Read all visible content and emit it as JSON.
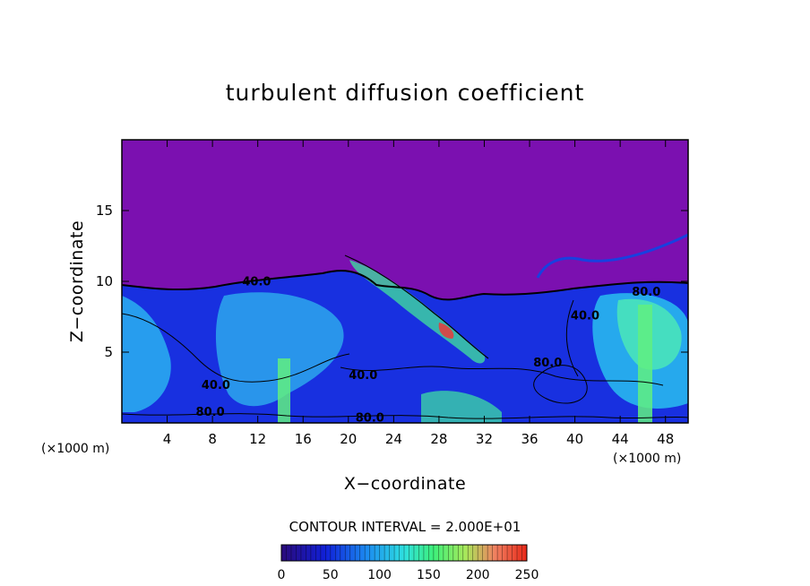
{
  "chart_data": {
    "type": "heatmap",
    "title": "turbulent diffusion coefficient",
    "xlabel": "X−coordinate",
    "ylabel": "Z−coordinate",
    "x_unit": "(×1000 m)",
    "y_unit": "(×1000 m)",
    "xlim": [
      0,
      50
    ],
    "ylim": [
      0,
      20
    ],
    "x_ticks": [
      4,
      8,
      12,
      16,
      20,
      24,
      28,
      32,
      36,
      40,
      44,
      48
    ],
    "y_ticks": [
      5,
      10,
      15
    ],
    "contour_interval_text": "CONTOUR INTERVAL = 2.000E+01",
    "colorbar": {
      "ticks": [
        0,
        50,
        100,
        150,
        200,
        250
      ],
      "range": [
        0,
        250
      ]
    },
    "contour_labels": [
      {
        "text": "40.0",
        "x": 11.9,
        "z": 9.7
      },
      {
        "text": "40.0",
        "x": 8.3,
        "z": 2.4
      },
      {
        "text": "80.0",
        "x": 7.8,
        "z": 0.5
      },
      {
        "text": "40.0",
        "x": 21.3,
        "z": 3.1
      },
      {
        "text": "80.0",
        "x": 21.9,
        "z": 0.1
      },
      {
        "text": "80.0",
        "x": 37.6,
        "z": 4.0
      },
      {
        "text": "40.0",
        "x": 40.9,
        "z": 7.3
      },
      {
        "text": "80.0",
        "x": 46.3,
        "z": 9.0
      }
    ]
  }
}
